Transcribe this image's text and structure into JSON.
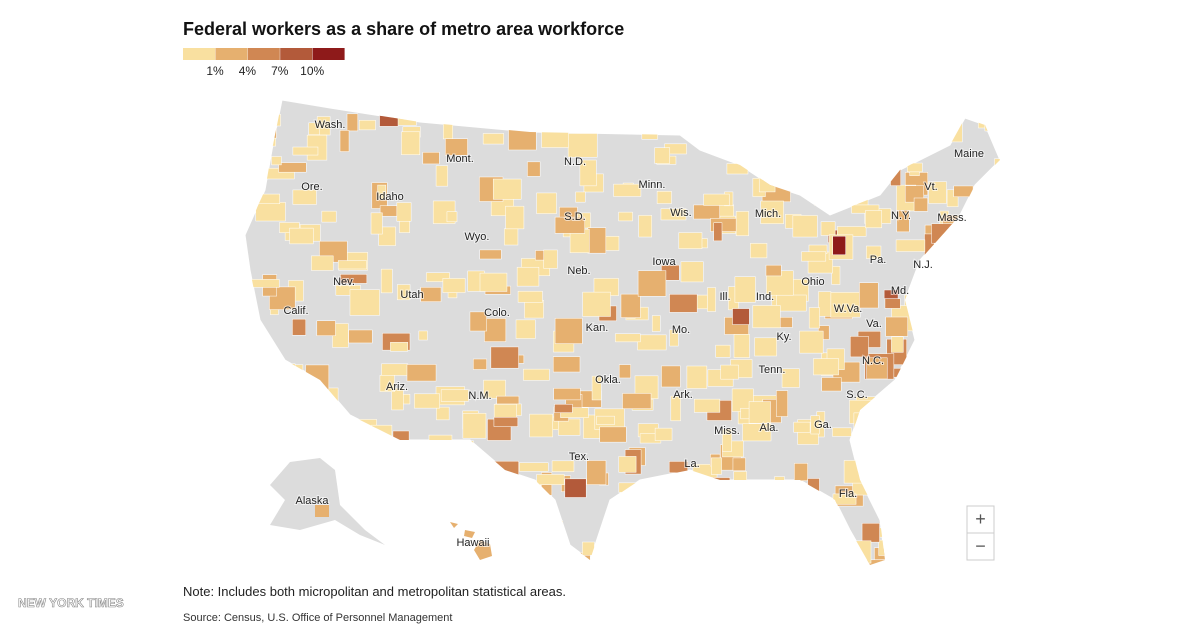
{
  "header": {
    "title": "Federal workers as a share of metro area workforce"
  },
  "legend": {
    "colors": [
      "#f9e0a0",
      "#e6b06f",
      "#d08753",
      "#b35a3a",
      "#8e1a1a"
    ],
    "labels": [
      "1%",
      "4%",
      "7%",
      "10%"
    ]
  },
  "states": [
    "Wash.",
    "Mont.",
    "N.D.",
    "Minn.",
    "Ore.",
    "Idaho",
    "S.D.",
    "Wis.",
    "Mich.",
    "Wyo.",
    "Neb.",
    "Iowa",
    "Nev.",
    "Utah",
    "Colo.",
    "Calif.",
    "Kan.",
    "Mo.",
    "Ill.",
    "Ind.",
    "Ohio",
    "Ariz.",
    "N.M.",
    "Okla.",
    "Ark.",
    "Tenn.",
    "Ky.",
    "Tex.",
    "La.",
    "Miss.",
    "Ala.",
    "Ga.",
    "Fla.",
    "S.C.",
    "N.C.",
    "Va.",
    "W.Va.",
    "Md.",
    "Pa.",
    "N.J.",
    "N.Y.",
    "Vt.",
    "Mass.",
    "Maine",
    "Alaska",
    "Hawaii"
  ],
  "zoom": {
    "in": "+",
    "out": "−"
  },
  "note": "Note: Includes both micropolitan and metropolitan statistical areas.",
  "source": "Source: Census, U.S. Office of Personnel Management",
  "logo": "NEW YORK TIMES"
}
